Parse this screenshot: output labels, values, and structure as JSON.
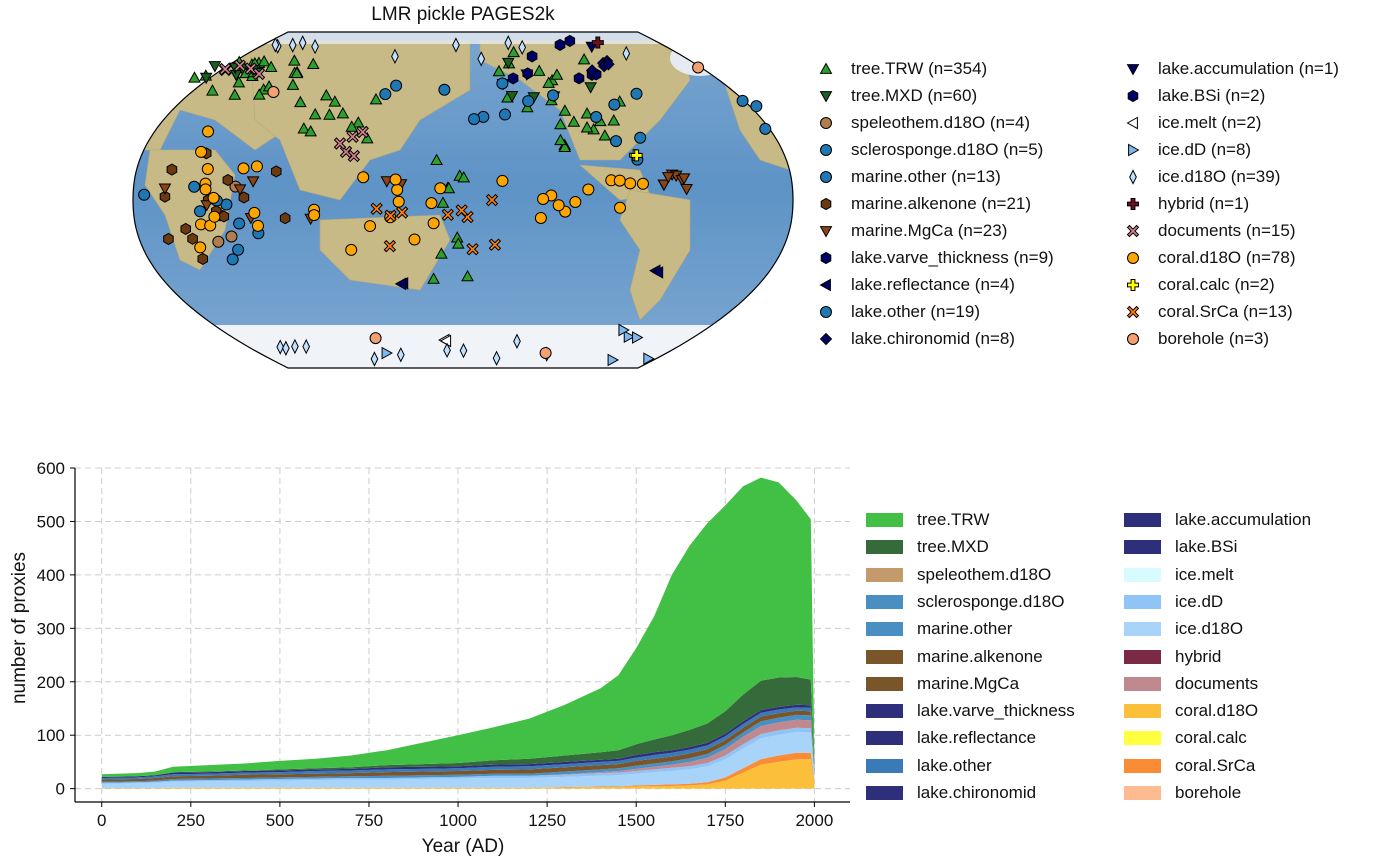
{
  "map": {
    "title": "LMR pickle PAGES2k",
    "legend": [
      {
        "label": "tree.TRW (n=354)",
        "marker": "triangle-up",
        "color": "#2ca02c"
      },
      {
        "label": "tree.MXD (n=60)",
        "marker": "triangle-down",
        "color": "#1b5e20"
      },
      {
        "label": "speleothem.d18O (n=4)",
        "marker": "circle",
        "color": "#b07d4f"
      },
      {
        "label": "sclerosponge.d18O (n=5)",
        "marker": "circle",
        "color": "#1f77b4"
      },
      {
        "label": "marine.other (n=13)",
        "marker": "circle",
        "color": "#1f77b4"
      },
      {
        "label": "marine.alkenone (n=21)",
        "marker": "hexagon",
        "color": "#6b3a10"
      },
      {
        "label": "marine.MgCa (n=23)",
        "marker": "triangle-down",
        "color": "#8b4513"
      },
      {
        "label": "lake.varve_thickness (n=9)",
        "marker": "hexagon",
        "color": "#000066"
      },
      {
        "label": "lake.reflectance (n=4)",
        "marker": "triangle-left",
        "color": "#000066"
      },
      {
        "label": "lake.other (n=19)",
        "marker": "circle",
        "color": "#1f77b4"
      },
      {
        "label": "lake.chironomid (n=8)",
        "marker": "diamond",
        "color": "#000066"
      },
      {
        "label": "lake.accumulation (n=1)",
        "marker": "triangle-down",
        "color": "#000066"
      },
      {
        "label": "lake.BSi (n=2)",
        "marker": "hexagon",
        "color": "#000066"
      },
      {
        "label": "ice.melt (n=2)",
        "marker": "triangle-left",
        "color": "#ffffff"
      },
      {
        "label": "ice.dD (n=8)",
        "marker": "triangle-right",
        "color": "#7fb8f0"
      },
      {
        "label": "ice.d18O (n=39)",
        "marker": "thin-diamond",
        "color": "#bfe0ff"
      },
      {
        "label": "hybrid (n=1)",
        "marker": "plus",
        "color": "#6b1020"
      },
      {
        "label": "documents (n=15)",
        "marker": "x",
        "color": "#d08090"
      },
      {
        "label": "coral.d18O (n=78)",
        "marker": "circle",
        "color": "#ffa500"
      },
      {
        "label": "coral.calc (n=2)",
        "marker": "plus",
        "color": "#ffff00"
      },
      {
        "label": "coral.SrCa (n=13)",
        "marker": "x",
        "color": "#ff7f0e"
      },
      {
        "label": "borehole (n=3)",
        "marker": "circle",
        "color": "#f4a070"
      }
    ],
    "colors": {
      "ocean": "#6d9fcf",
      "land": "#c9b98a",
      "ice": "#f2f5fa"
    }
  },
  "chart_data": {
    "type": "area",
    "stacked": true,
    "title": "",
    "xlabel": "Year (AD)",
    "ylabel": "number of proxies",
    "xlim": [
      -75,
      2100
    ],
    "ylim": [
      -25,
      600
    ],
    "xticks": [
      0,
      250,
      500,
      750,
      1000,
      1250,
      1500,
      1750,
      2000
    ],
    "yticks": [
      0,
      100,
      200,
      300,
      400,
      500,
      600
    ],
    "grid": true,
    "x": [
      0,
      100,
      150,
      200,
      300,
      400,
      500,
      600,
      700,
      800,
      900,
      1000,
      1100,
      1200,
      1300,
      1400,
      1450,
      1500,
      1550,
      1600,
      1650,
      1700,
      1750,
      1800,
      1850,
      1900,
      1950,
      1990,
      2000
    ],
    "series": [
      {
        "name": "coral.d18O",
        "color": "#fbbf3a",
        "values": [
          1,
          1,
          1,
          2,
          2,
          2,
          2,
          2,
          2,
          2,
          2,
          2,
          2,
          2,
          2,
          3,
          3,
          4,
          5,
          5,
          6,
          8,
          15,
          30,
          45,
          50,
          55,
          55,
          10
        ]
      },
      {
        "name": "coral.SrCa",
        "color": "#fb8c36",
        "values": [
          0,
          0,
          0,
          0,
          0,
          0,
          0,
          0,
          0,
          0,
          0,
          0,
          0,
          0,
          1,
          1,
          1,
          2,
          2,
          3,
          3,
          4,
          6,
          8,
          10,
          12,
          12,
          12,
          4
        ]
      },
      {
        "name": "ice.d18O",
        "color": "#a8d4fa",
        "values": [
          8,
          9,
          10,
          11,
          12,
          12,
          13,
          14,
          15,
          15,
          16,
          17,
          18,
          18,
          19,
          20,
          21,
          22,
          24,
          25,
          27,
          30,
          34,
          37,
          39,
          39,
          39,
          38,
          8
        ]
      },
      {
        "name": "ice.dD",
        "color": "#90c4f7",
        "values": [
          2,
          2,
          2,
          2,
          2,
          3,
          3,
          3,
          3,
          3,
          3,
          3,
          4,
          4,
          4,
          5,
          5,
          5,
          5,
          6,
          6,
          6,
          7,
          8,
          8,
          8,
          8,
          8,
          2
        ]
      },
      {
        "name": "documents",
        "color": "#c0888f",
        "values": [
          0,
          0,
          0,
          0,
          0,
          0,
          0,
          0,
          0,
          0,
          0,
          0,
          0,
          0,
          1,
          2,
          3,
          4,
          5,
          6,
          8,
          10,
          12,
          14,
          15,
          15,
          15,
          15,
          4
        ]
      },
      {
        "name": "marine.other",
        "color": "#4a8fc2",
        "values": [
          2,
          2,
          2,
          3,
          3,
          3,
          3,
          3,
          3,
          4,
          4,
          4,
          4,
          4,
          5,
          5,
          5,
          6,
          6,
          6,
          7,
          7,
          8,
          8,
          9,
          9,
          9,
          9,
          2
        ]
      },
      {
        "name": "marine.alkenone",
        "color": "#7a552a",
        "values": [
          4,
          4,
          5,
          5,
          5,
          6,
          6,
          6,
          6,
          7,
          7,
          7,
          7,
          8,
          8,
          8,
          8,
          9,
          9,
          9,
          9,
          9,
          9,
          9,
          9,
          8,
          8,
          8,
          2
        ]
      },
      {
        "name": "lake.other",
        "color": "#3a7ab6",
        "values": [
          3,
          3,
          3,
          4,
          4,
          4,
          4,
          5,
          5,
          5,
          5,
          5,
          6,
          6,
          6,
          6,
          6,
          6,
          7,
          7,
          7,
          7,
          7,
          7,
          7,
          7,
          6,
          6,
          2
        ]
      },
      {
        "name": "lake.varve_thickness",
        "color": "#2e2f7a",
        "values": [
          2,
          2,
          2,
          3,
          3,
          3,
          3,
          3,
          3,
          4,
          4,
          4,
          4,
          4,
          4,
          4,
          4,
          5,
          5,
          5,
          5,
          5,
          5,
          5,
          5,
          5,
          5,
          5,
          1
        ]
      },
      {
        "name": "tree.MXD",
        "color": "#356b3a",
        "values": [
          0,
          0,
          0,
          1,
          1,
          1,
          2,
          2,
          3,
          4,
          5,
          6,
          8,
          10,
          12,
          14,
          16,
          20,
          24,
          28,
          32,
          36,
          42,
          50,
          55,
          55,
          52,
          48,
          10
        ]
      },
      {
        "name": "tree.TRW",
        "color": "#42bf45",
        "values": [
          5,
          6,
          7,
          10,
          12,
          13,
          16,
          18,
          22,
          28,
          40,
          52,
          62,
          75,
          95,
          120,
          140,
          180,
          230,
          300,
          345,
          375,
          385,
          390,
          380,
          365,
          330,
          300,
          25
        ]
      }
    ]
  }
}
